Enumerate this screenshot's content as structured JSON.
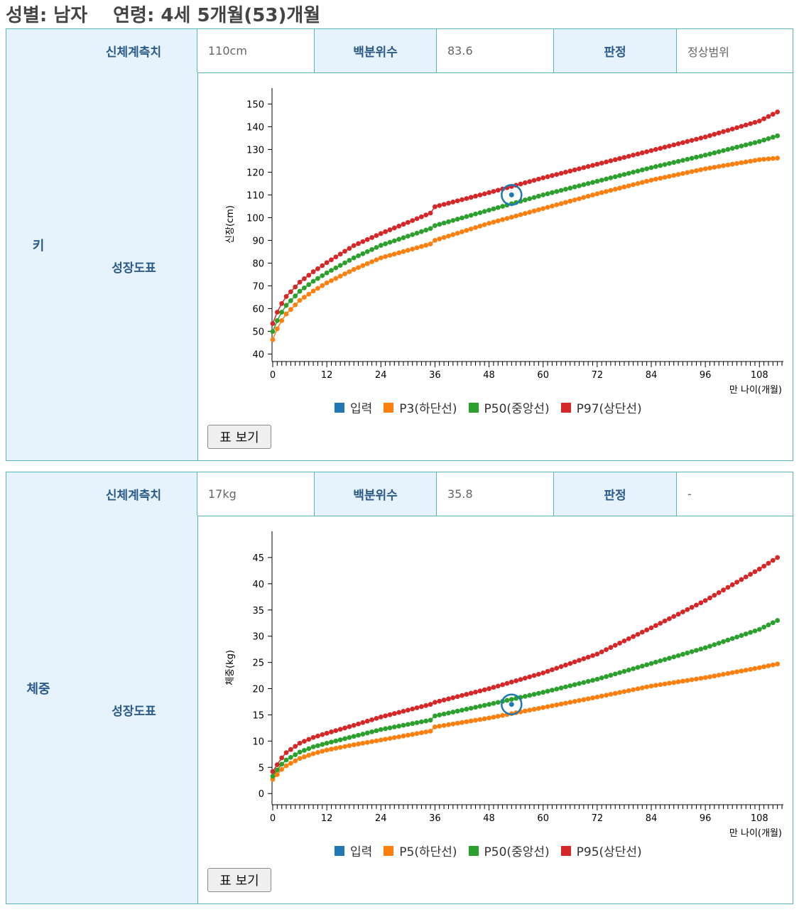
{
  "header": {
    "sex_label": "성별: 남자",
    "age_label": "연령: 4세 5개월(53)개월"
  },
  "height_panel": {
    "row_label": "키",
    "measure_head": "신체계측치",
    "measure_value": "110cm",
    "percentile_head": "백분위수",
    "percentile_value": "83.6",
    "judgement_head": "판정",
    "judgement_value": "정상범위",
    "chart_head": "성장도표",
    "button_label": "표 보기"
  },
  "weight_panel": {
    "row_label": "체중",
    "measure_head": "신체계측치",
    "measure_value": "17kg",
    "percentile_head": "백분위수",
    "percentile_value": "35.8",
    "judgement_head": "판정",
    "judgement_value": "-",
    "chart_head": "성장도표",
    "button_label": "표 보기"
  },
  "colors": {
    "input": "#1f77b4",
    "p_low": "#ff7f0e",
    "p50": "#2ca02c",
    "p_high": "#d62728",
    "border": "#5ab4b8",
    "head_bg": "#e6f3fc"
  },
  "chart_data": [
    {
      "type": "scatter",
      "id": "height",
      "ylabel": "신장(cm)",
      "xlabel": "만 나이(개월)",
      "xlim": [
        0,
        113
      ],
      "ylim": [
        37,
        157
      ],
      "yticks": [
        40,
        50,
        60,
        70,
        80,
        90,
        100,
        110,
        120,
        130,
        140,
        150
      ],
      "xticks": [
        0,
        12,
        24,
        36,
        48,
        60,
        72,
        84,
        96,
        108
      ],
      "legend": [
        "입력",
        "P3(하단선)",
        "P50(중앙선)",
        "P97(상단선)"
      ],
      "input_point": {
        "x": 53,
        "y": 110
      },
      "series": [
        {
          "name": "P3(하단선)",
          "points": [
            [
              0,
              46.3
            ],
            [
              1,
              51.1
            ],
            [
              2,
              54.7
            ],
            [
              3,
              57.6
            ],
            [
              6,
              63.6
            ],
            [
              9,
              67.7
            ],
            [
              12,
              71.3
            ],
            [
              18,
              77.2
            ],
            [
              24,
              82.3
            ],
            [
              35,
              88.4
            ],
            [
              36,
              90.0
            ],
            [
              48,
              97.5
            ],
            [
              60,
              104.0
            ],
            [
              72,
              110.5
            ],
            [
              84,
              116.5
            ],
            [
              96,
              121.5
            ],
            [
              108,
              125.5
            ],
            [
              112,
              126.2
            ]
          ]
        },
        {
          "name": "P50(중앙선)",
          "points": [
            [
              0,
              49.9
            ],
            [
              1,
              54.7
            ],
            [
              2,
              58.4
            ],
            [
              3,
              61.4
            ],
            [
              6,
              67.6
            ],
            [
              9,
              72.0
            ],
            [
              12,
              75.7
            ],
            [
              18,
              82.3
            ],
            [
              24,
              87.8
            ],
            [
              35,
              95.2
            ],
            [
              36,
              96.5
            ],
            [
              48,
              103.3
            ],
            [
              60,
              110.0
            ],
            [
              72,
              116.0
            ],
            [
              84,
              122.0
            ],
            [
              96,
              127.5
            ],
            [
              108,
              133.5
            ],
            [
              112,
              136.0
            ]
          ]
        },
        {
          "name": "P97(상단선)",
          "points": [
            [
              0,
              53.4
            ],
            [
              1,
              58.4
            ],
            [
              2,
              62.2
            ],
            [
              3,
              65.3
            ],
            [
              6,
              71.6
            ],
            [
              9,
              76.2
            ],
            [
              12,
              80.2
            ],
            [
              18,
              87.7
            ],
            [
              24,
              93.0
            ],
            [
              35,
              102.0
            ],
            [
              36,
              104.8
            ],
            [
              48,
              111.0
            ],
            [
              60,
              117.5
            ],
            [
              72,
              123.5
            ],
            [
              84,
              129.5
            ],
            [
              96,
              135.5
            ],
            [
              108,
              142.5
            ],
            [
              112,
              146.5
            ]
          ]
        }
      ]
    },
    {
      "type": "scatter",
      "id": "weight",
      "ylabel": "체중(kg)",
      "xlabel": "만 나이(개월)",
      "xlim": [
        0,
        113
      ],
      "ylim": [
        -2,
        50
      ],
      "yticks": [
        0,
        5,
        10,
        15,
        20,
        25,
        30,
        35,
        40,
        45
      ],
      "xticks": [
        0,
        12,
        24,
        36,
        48,
        60,
        72,
        84,
        96,
        108
      ],
      "legend": [
        "입력",
        "P5(하단선)",
        "P50(중앙선)",
        "P95(상단선)"
      ],
      "input_point": {
        "x": 53,
        "y": 17
      },
      "series": [
        {
          "name": "P5(하단선)",
          "points": [
            [
              0,
              2.7
            ],
            [
              1,
              3.6
            ],
            [
              2,
              4.6
            ],
            [
              3,
              5.3
            ],
            [
              6,
              6.7
            ],
            [
              9,
              7.6
            ],
            [
              12,
              8.3
            ],
            [
              18,
              9.3
            ],
            [
              24,
              10.2
            ],
            [
              35,
              11.9
            ],
            [
              36,
              12.7
            ],
            [
              48,
              14.4
            ],
            [
              60,
              16.4
            ],
            [
              72,
              18.4
            ],
            [
              84,
              20.5
            ],
            [
              96,
              22.1
            ],
            [
              108,
              24.0
            ],
            [
              112,
              24.7
            ]
          ]
        },
        {
          "name": "P50(중앙선)",
          "points": [
            [
              0,
              3.3
            ],
            [
              1,
              4.5
            ],
            [
              2,
              5.6
            ],
            [
              3,
              6.4
            ],
            [
              6,
              7.9
            ],
            [
              9,
              8.9
            ],
            [
              12,
              9.6
            ],
            [
              18,
              10.9
            ],
            [
              24,
              12.2
            ],
            [
              35,
              14.0
            ],
            [
              36,
              14.8
            ],
            [
              48,
              17.0
            ],
            [
              60,
              19.3
            ],
            [
              72,
              21.8
            ],
            [
              84,
              24.8
            ],
            [
              96,
              27.8
            ],
            [
              108,
              31.3
            ],
            [
              112,
              33.0
            ]
          ]
        },
        {
          "name": "P95(상단선)",
          "points": [
            [
              0,
              4.2
            ],
            [
              1,
              5.5
            ],
            [
              2,
              6.8
            ],
            [
              3,
              7.8
            ],
            [
              6,
              9.6
            ],
            [
              9,
              10.7
            ],
            [
              12,
              11.5
            ],
            [
              18,
              13.0
            ],
            [
              24,
              14.6
            ],
            [
              35,
              17.0
            ],
            [
              36,
              17.4
            ],
            [
              48,
              20.0
            ],
            [
              60,
              23.0
            ],
            [
              72,
              26.6
            ],
            [
              84,
              31.6
            ],
            [
              96,
              36.8
            ],
            [
              108,
              42.8
            ],
            [
              112,
              45.0
            ]
          ]
        }
      ]
    }
  ]
}
